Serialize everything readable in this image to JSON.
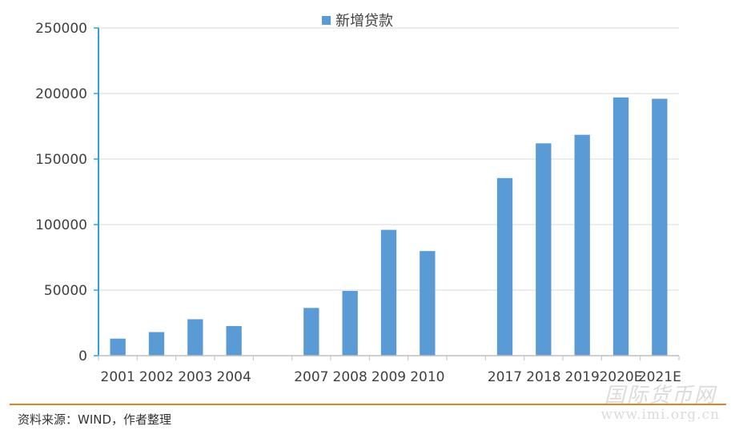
{
  "chart_data": {
    "type": "bar",
    "title": "",
    "xlabel": "",
    "ylabel": "",
    "ylim": [
      0,
      250000
    ],
    "yticks": [
      0,
      50000,
      100000,
      150000,
      200000,
      250000
    ],
    "ytick_labels": [
      "0",
      "50000",
      "100000",
      "150000",
      "200000",
      "250000"
    ],
    "categories": [
      "2001",
      "2002",
      "2003",
      "2004",
      "",
      "2007",
      "2008",
      "2009",
      "2010",
      "",
      "2017",
      "2018",
      "2019",
      "2020E",
      "2021E"
    ],
    "series": [
      {
        "name": "新增贷款",
        "color": "#5b9bd5",
        "values": [
          13000,
          18000,
          27800,
          22600,
          null,
          36400,
          49400,
          96000,
          79800,
          null,
          135500,
          162000,
          168500,
          197000,
          196000
        ]
      }
    ],
    "legend_position": "top-center",
    "grid": true
  },
  "colors": {
    "axis": "#2ea3d8",
    "grid": "#d9d9d9",
    "footer_rule": "#e0812c"
  },
  "footer": {
    "source": "资料来源：WIND，作者整理"
  },
  "watermark": {
    "main": "国际货币网",
    "url": "www.imi.org.cn"
  }
}
